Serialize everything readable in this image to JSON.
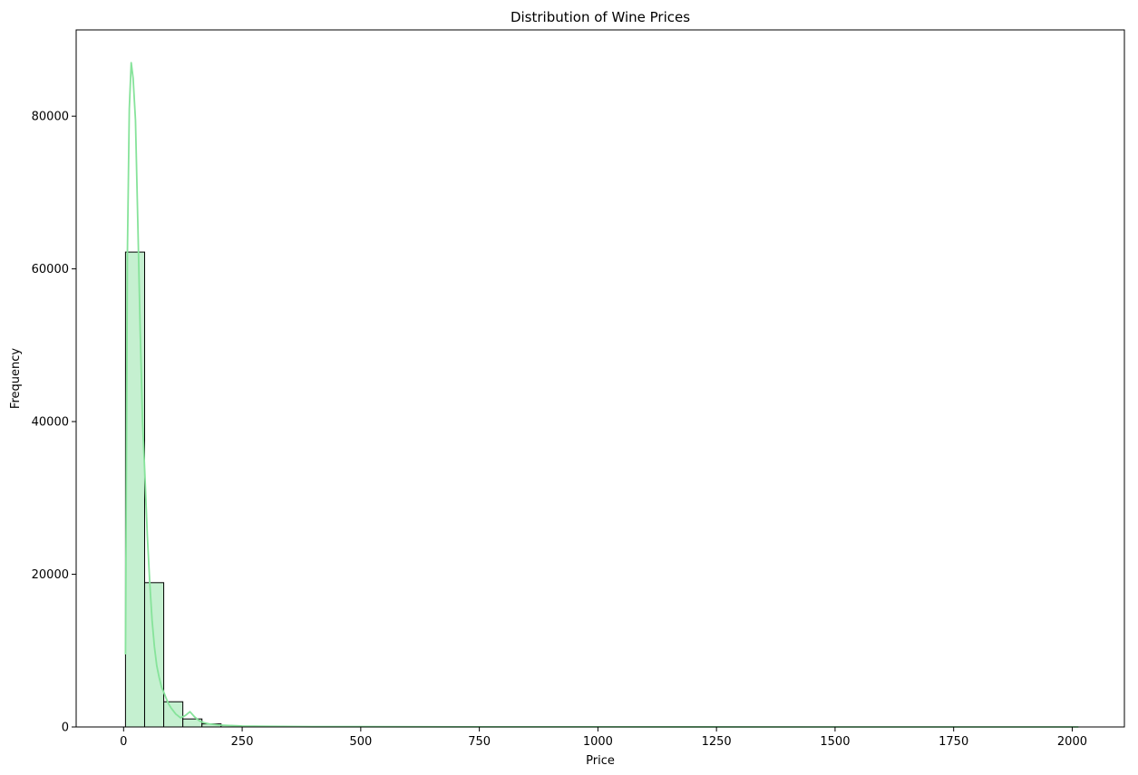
{
  "chart_data": {
    "type": "bar",
    "title": "Distribution of Wine Prices",
    "xlabel": "Price",
    "ylabel": "Frequency",
    "xlim": [
      -100,
      2110
    ],
    "ylim": [
      0,
      91300
    ],
    "xticks": [
      0,
      250,
      500,
      750,
      1000,
      1250,
      1500,
      1750,
      2000
    ],
    "yticks": [
      0,
      20000,
      40000,
      60000,
      80000
    ],
    "bin_width": 40.3,
    "bins": [
      {
        "x0": 4.0,
        "x1": 44.3,
        "count": 62200
      },
      {
        "x0": 44.3,
        "x1": 84.6,
        "count": 18900
      },
      {
        "x0": 84.6,
        "x1": 124.9,
        "count": 3300
      },
      {
        "x0": 124.9,
        "x1": 165.2,
        "count": 1050
      },
      {
        "x0": 165.2,
        "x1": 205.5,
        "count": 400
      },
      {
        "x0": 205.5,
        "x1": 245.8,
        "count": 180
      },
      {
        "x0": 245.8,
        "x1": 286.1,
        "count": 70
      },
      {
        "x0": 286.1,
        "x1": 326.4,
        "count": 40
      },
      {
        "x0": 326.4,
        "x1": 366.7,
        "count": 20
      },
      {
        "x0": 366.7,
        "x1": 407.0,
        "count": 12
      },
      {
        "x0": 407.0,
        "x1": 447.3,
        "count": 10
      },
      {
        "x0": 447.3,
        "x1": 487.6,
        "count": 8
      }
    ],
    "kde": {
      "x": [
        4,
        8,
        12,
        16,
        20,
        25,
        30,
        35,
        40,
        45,
        50,
        55,
        60,
        65,
        70,
        75,
        80,
        85,
        90,
        95,
        100,
        110,
        120,
        130,
        140,
        150,
        160,
        170,
        180,
        200,
        250,
        300,
        400,
        500,
        750,
        1000,
        1500,
        2013
      ],
      "y": [
        9500,
        62000,
        81000,
        87000,
        85000,
        79500,
        66000,
        52000,
        40000,
        33000,
        25000,
        19000,
        14000,
        10500,
        8000,
        6500,
        5200,
        4500,
        3700,
        3000,
        2500,
        1700,
        1200,
        1500,
        2000,
        1300,
        800,
        550,
        400,
        250,
        120,
        80,
        40,
        30,
        15,
        10,
        5,
        2
      ]
    },
    "colors": {
      "bar_fill": "#c5f0d0",
      "bar_edge": "#000000",
      "kde_line": "#86e39a"
    },
    "grid": false,
    "legend": "none"
  }
}
